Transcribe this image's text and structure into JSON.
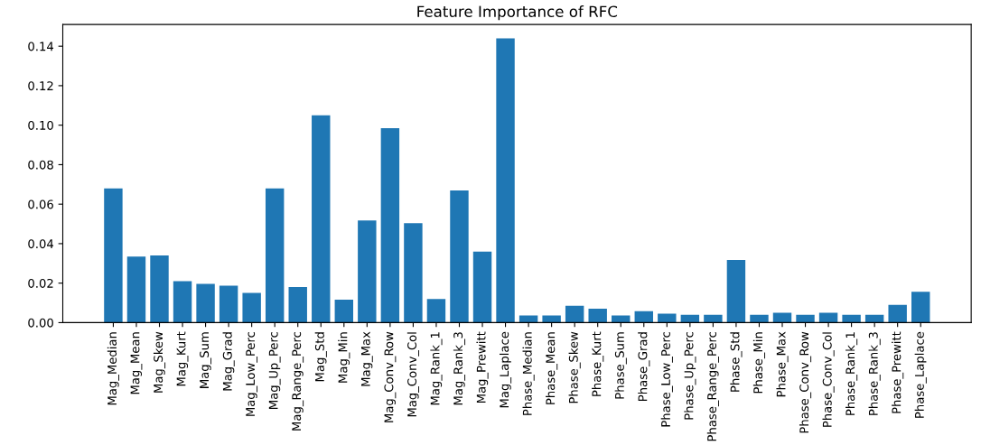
{
  "chart_data": {
    "type": "bar",
    "title": "Feature Importance of RFC",
    "categories": [
      "Mag_Median",
      "Mag_Mean",
      "Mag_Skew",
      "Mag_Kurt",
      "Mag_Sum",
      "Mag_Grad",
      "Mag_Low_Perc",
      "Mag_Up_Perc",
      "Mag_Range_Perc",
      "Mag_Std",
      "Mag_Min",
      "Mag_Max",
      "Mag_Conv_Row",
      "Mag_Conv_Col",
      "Mag_Rank_1",
      "Mag_Rank_3",
      "Mag_Prewitt",
      "Mag_Laplace",
      "Phase_Median",
      "Phase_Mean",
      "Phase_Skew",
      "Phase_Kurt",
      "Phase_Sum",
      "Phase_Grad",
      "Phase_Low_Perc",
      "Phase_Up_Perc",
      "Phase_Range_Perc",
      "Phase_Std",
      "Phase_Min",
      "Phase_Max",
      "Phase_Conv_Row",
      "Phase_Conv_Col",
      "Phase_Rank_1",
      "Phase_Rank_3",
      "Phase_Prewitt",
      "Phase_Laplace"
    ],
    "values": [
      0.068,
      0.0334,
      0.034,
      0.021,
      0.0196,
      0.0187,
      0.015,
      0.068,
      0.018,
      0.105,
      0.0116,
      0.0517,
      0.0985,
      0.0504,
      0.012,
      0.0669,
      0.036,
      0.144,
      0.0036,
      0.0036,
      0.0085,
      0.0071,
      0.0036,
      0.0058,
      0.0045,
      0.004,
      0.004,
      0.0317,
      0.004,
      0.005,
      0.004,
      0.005,
      0.004,
      0.004,
      0.009,
      0.0156
    ],
    "color": "#1f77b4",
    "ylim": [
      0,
      0.151
    ],
    "yticks": [
      {
        "value": 0,
        "label": "0.00"
      },
      {
        "value": 0.02,
        "label": "0.02"
      },
      {
        "value": 0.04,
        "label": "0.04"
      },
      {
        "value": 0.06,
        "label": "0.06"
      },
      {
        "value": 0.08,
        "label": "0.08"
      },
      {
        "value": 0.1,
        "label": "0.10"
      },
      {
        "value": 0.12,
        "label": "0.12"
      },
      {
        "value": 0.14,
        "label": "0.14"
      }
    ],
    "grid": false,
    "legend": false
  }
}
